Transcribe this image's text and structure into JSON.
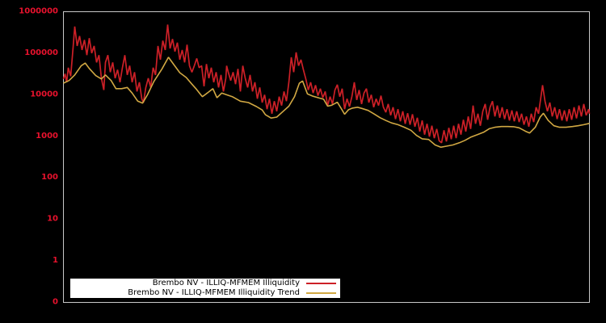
{
  "figure": {
    "background": "#000000",
    "frame_color": "#c8c8c8",
    "tick_label_color": "#e8122d"
  },
  "chart_data": {
    "type": "line",
    "title": "",
    "xlabel": "",
    "ylabel": "",
    "grid": false,
    "legend_position": "bottom-left-inside",
    "y_axis": {
      "scale": "log",
      "tick_labels": [
        "1000000",
        "100000",
        "10000",
        "1000",
        "100",
        "10",
        "1",
        "0"
      ],
      "range_log10": [
        -1,
        6
      ]
    },
    "x_axis": {
      "tick_labels": [],
      "range": [
        0,
        651
      ]
    },
    "series": [
      {
        "name": "Brembo NV - ILLIQ-MFMEM Illiquidity",
        "color": "#cc2027",
        "points": [
          [
            0,
            24000
          ],
          [
            2,
            32000
          ],
          [
            4,
            20000
          ],
          [
            6,
            45000
          ],
          [
            9,
            28000
          ],
          [
            12,
            140000
          ],
          [
            14,
            440000
          ],
          [
            17,
            150000
          ],
          [
            20,
            260000
          ],
          [
            23,
            120000
          ],
          [
            26,
            210000
          ],
          [
            29,
            90000
          ],
          [
            32,
            230000
          ],
          [
            35,
            100000
          ],
          [
            38,
            150000
          ],
          [
            41,
            60000
          ],
          [
            44,
            90000
          ],
          [
            47,
            25000
          ],
          [
            50,
            13000
          ],
          [
            52,
            60000
          ],
          [
            55,
            90000
          ],
          [
            58,
            35000
          ],
          [
            61,
            60000
          ],
          [
            64,
            25000
          ],
          [
            67,
            40000
          ],
          [
            70,
            20000
          ],
          [
            73,
            45000
          ],
          [
            76,
            90000
          ],
          [
            79,
            30000
          ],
          [
            82,
            50000
          ],
          [
            85,
            20000
          ],
          [
            88,
            35000
          ],
          [
            91,
            12000
          ],
          [
            94,
            20000
          ],
          [
            97,
            8000
          ],
          [
            99,
            6500
          ],
          [
            102,
            15000
          ],
          [
            105,
            25000
          ],
          [
            108,
            15000
          ],
          [
            111,
            45000
          ],
          [
            114,
            30000
          ],
          [
            117,
            150000
          ],
          [
            120,
            70000
          ],
          [
            123,
            200000
          ],
          [
            126,
            120000
          ],
          [
            129,
            490000
          ],
          [
            132,
            130000
          ],
          [
            135,
            220000
          ],
          [
            138,
            110000
          ],
          [
            141,
            180000
          ],
          [
            144,
            70000
          ],
          [
            147,
            120000
          ],
          [
            150,
            60000
          ],
          [
            153,
            160000
          ],
          [
            156,
            50000
          ],
          [
            159,
            35000
          ],
          [
            162,
            50000
          ],
          [
            165,
            75000
          ],
          [
            168,
            45000
          ],
          [
            171,
            50000
          ],
          [
            174,
            16000
          ],
          [
            177,
            55000
          ],
          [
            180,
            25000
          ],
          [
            183,
            45000
          ],
          [
            186,
            20000
          ],
          [
            189,
            35000
          ],
          [
            192,
            15000
          ],
          [
            195,
            30000
          ],
          [
            198,
            12000
          ],
          [
            201,
            25000
          ],
          [
            202,
            50000
          ],
          [
            204,
            35000
          ],
          [
            207,
            22000
          ],
          [
            210,
            35000
          ],
          [
            213,
            18000
          ],
          [
            216,
            42000
          ],
          [
            219,
            12000
          ],
          [
            222,
            50000
          ],
          [
            225,
            25000
          ],
          [
            228,
            15000
          ],
          [
            231,
            30000
          ],
          [
            234,
            12000
          ],
          [
            237,
            20000
          ],
          [
            240,
            8000
          ],
          [
            243,
            15000
          ],
          [
            246,
            6500
          ],
          [
            249,
            10000
          ],
          [
            252,
            4500
          ],
          [
            255,
            8000
          ],
          [
            258,
            3500
          ],
          [
            261,
            7000
          ],
          [
            264,
            4000
          ],
          [
            267,
            9000
          ],
          [
            270,
            5500
          ],
          [
            273,
            12000
          ],
          [
            276,
            7000
          ],
          [
            279,
            20000
          ],
          [
            282,
            80000
          ],
          [
            285,
            35000
          ],
          [
            288,
            105000
          ],
          [
            291,
            50000
          ],
          [
            294,
            70000
          ],
          [
            297,
            40000
          ],
          [
            300,
            24000
          ],
          [
            303,
            13000
          ],
          [
            306,
            20000
          ],
          [
            309,
            11000
          ],
          [
            312,
            17000
          ],
          [
            315,
            9500
          ],
          [
            318,
            14000
          ],
          [
            321,
            8500
          ],
          [
            324,
            12000
          ],
          [
            327,
            5500
          ],
          [
            330,
            9000
          ],
          [
            333,
            6000
          ],
          [
            336,
            13000
          ],
          [
            339,
            17500
          ],
          [
            342,
            9000
          ],
          [
            345,
            14000
          ],
          [
            348,
            4500
          ],
          [
            351,
            8000
          ],
          [
            354,
            5200
          ],
          [
            357,
            9000
          ],
          [
            360,
            20000
          ],
          [
            363,
            7500
          ],
          [
            366,
            13000
          ],
          [
            369,
            6000
          ],
          [
            372,
            11000
          ],
          [
            375,
            14000
          ],
          [
            378,
            6500
          ],
          [
            381,
            10000
          ],
          [
            384,
            5000
          ],
          [
            387,
            8000
          ],
          [
            390,
            5500
          ],
          [
            393,
            9500
          ],
          [
            396,
            5000
          ],
          [
            399,
            3800
          ],
          [
            402,
            6000
          ],
          [
            405,
            3200
          ],
          [
            408,
            5000
          ],
          [
            411,
            2600
          ],
          [
            414,
            4500
          ],
          [
            417,
            2300
          ],
          [
            420,
            4000
          ],
          [
            423,
            2000
          ],
          [
            426,
            3600
          ],
          [
            429,
            1900
          ],
          [
            432,
            3400
          ],
          [
            435,
            1700
          ],
          [
            438,
            2800
          ],
          [
            441,
            1300
          ],
          [
            444,
            2400
          ],
          [
            447,
            1100
          ],
          [
            450,
            2000
          ],
          [
            453,
            980
          ],
          [
            456,
            1800
          ],
          [
            459,
            900
          ],
          [
            462,
            1500
          ],
          [
            465,
            780
          ],
          [
            468,
            700
          ],
          [
            471,
            1400
          ],
          [
            474,
            750
          ],
          [
            477,
            1600
          ],
          [
            480,
            850
          ],
          [
            483,
            1800
          ],
          [
            486,
            900
          ],
          [
            489,
            2000
          ],
          [
            492,
            1100
          ],
          [
            495,
            2500
          ],
          [
            498,
            1300
          ],
          [
            501,
            3000
          ],
          [
            504,
            1500
          ],
          [
            507,
            5500
          ],
          [
            510,
            2000
          ],
          [
            513,
            3500
          ],
          [
            516,
            1800
          ],
          [
            519,
            4000
          ],
          [
            522,
            6000
          ],
          [
            525,
            2500
          ],
          [
            528,
            5000
          ],
          [
            531,
            7000
          ],
          [
            534,
            3000
          ],
          [
            537,
            5500
          ],
          [
            540,
            2800
          ],
          [
            543,
            5000
          ],
          [
            546,
            2600
          ],
          [
            549,
            4500
          ],
          [
            552,
            2400
          ],
          [
            555,
            4200
          ],
          [
            558,
            2300
          ],
          [
            561,
            4000
          ],
          [
            564,
            2200
          ],
          [
            567,
            3500
          ],
          [
            570,
            1900
          ],
          [
            573,
            3000
          ],
          [
            576,
            1700
          ],
          [
            579,
            3500
          ],
          [
            582,
            2200
          ],
          [
            585,
            5000
          ],
          [
            588,
            3500
          ],
          [
            591,
            9000
          ],
          [
            593,
            17000
          ],
          [
            596,
            7000
          ],
          [
            599,
            4000
          ],
          [
            602,
            6500
          ],
          [
            605,
            3000
          ],
          [
            608,
            5000
          ],
          [
            611,
            2600
          ],
          [
            614,
            4500
          ],
          [
            617,
            2400
          ],
          [
            620,
            4200
          ],
          [
            623,
            2300
          ],
          [
            626,
            4500
          ],
          [
            629,
            2500
          ],
          [
            632,
            5000
          ],
          [
            635,
            2700
          ],
          [
            638,
            5500
          ],
          [
            641,
            3000
          ],
          [
            644,
            6000
          ],
          [
            647,
            3200
          ],
          [
            650,
            4500
          ],
          [
            651,
            3500
          ]
        ]
      },
      {
        "name": "Brembo NV - ILLIQ-MFMEM Illiquidity Trend",
        "color": "#d1a843",
        "points": [
          [
            0,
            19000
          ],
          [
            7,
            22000
          ],
          [
            14,
            30000
          ],
          [
            22,
            50000
          ],
          [
            27,
            58000
          ],
          [
            32,
            43000
          ],
          [
            40,
            29000
          ],
          [
            47,
            24000
          ],
          [
            52,
            30000
          ],
          [
            59,
            22000
          ],
          [
            65,
            14000
          ],
          [
            72,
            14000
          ],
          [
            79,
            15000
          ],
          [
            85,
            11000
          ],
          [
            92,
            7000
          ],
          [
            98,
            6300
          ],
          [
            104,
            10000
          ],
          [
            112,
            21000
          ],
          [
            122,
            42000
          ],
          [
            130,
            80000
          ],
          [
            137,
            52000
          ],
          [
            144,
            34000
          ],
          [
            152,
            26000
          ],
          [
            159,
            18000
          ],
          [
            164,
            14000
          ],
          [
            170,
            10000
          ],
          [
            172,
            9000
          ],
          [
            178,
            11000
          ],
          [
            185,
            14000
          ],
          [
            190,
            8500
          ],
          [
            196,
            11000
          ],
          [
            202,
            10000
          ],
          [
            209,
            9000
          ],
          [
            219,
            7000
          ],
          [
            229,
            6500
          ],
          [
            239,
            5200
          ],
          [
            242,
            4800
          ],
          [
            246,
            4300
          ],
          [
            250,
            3300
          ],
          [
            257,
            2750
          ],
          [
            264,
            2900
          ],
          [
            272,
            4000
          ],
          [
            279,
            5300
          ],
          [
            286,
            9000
          ],
          [
            292,
            19000
          ],
          [
            296,
            21500
          ],
          [
            302,
            10500
          ],
          [
            309,
            9200
          ],
          [
            317,
            8300
          ],
          [
            322,
            7800
          ],
          [
            327,
            5300
          ],
          [
            332,
            5600
          ],
          [
            339,
            6600
          ],
          [
            344,
            4600
          ],
          [
            348,
            3400
          ],
          [
            353,
            4400
          ],
          [
            358,
            4800
          ],
          [
            364,
            5000
          ],
          [
            369,
            4700
          ],
          [
            377,
            4200
          ],
          [
            384,
            3500
          ],
          [
            392,
            2800
          ],
          [
            399,
            2400
          ],
          [
            406,
            2100
          ],
          [
            414,
            1900
          ],
          [
            422,
            1650
          ],
          [
            430,
            1400
          ],
          [
            437,
            1050
          ],
          [
            444,
            870
          ],
          [
            452,
            840
          ],
          [
            460,
            620
          ],
          [
            467,
            545
          ],
          [
            474,
            580
          ],
          [
            482,
            620
          ],
          [
            490,
            700
          ],
          [
            497,
            800
          ],
          [
            504,
            950
          ],
          [
            512,
            1090
          ],
          [
            520,
            1250
          ],
          [
            527,
            1520
          ],
          [
            534,
            1650
          ],
          [
            542,
            1720
          ],
          [
            550,
            1720
          ],
          [
            557,
            1700
          ],
          [
            564,
            1600
          ],
          [
            572,
            1320
          ],
          [
            577,
            1200
          ],
          [
            584,
            1650
          ],
          [
            590,
            2900
          ],
          [
            594,
            3600
          ],
          [
            600,
            2400
          ],
          [
            607,
            1800
          ],
          [
            614,
            1650
          ],
          [
            622,
            1650
          ],
          [
            630,
            1720
          ],
          [
            637,
            1800
          ],
          [
            644,
            1900
          ],
          [
            651,
            2050
          ]
        ]
      }
    ]
  }
}
